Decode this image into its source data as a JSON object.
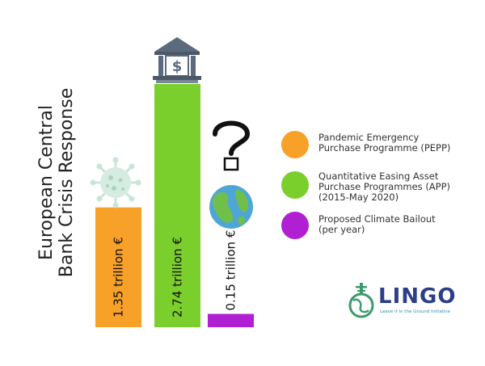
{
  "chart_data": {
    "type": "bar",
    "title_lines": [
      "European Central",
      "Bank Crisis Response"
    ],
    "categories": [
      "Pandemic Emergency Purchase Programme (PEPP)",
      "Quantitative Easing Asset Purchase Programmes (APP) (2015-May 2020)",
      "Proposed Climate Bailout (per year)"
    ],
    "values": [
      1.35,
      2.74,
      0.15
    ],
    "value_labels": [
      "1.35 trillion €",
      "2.74 trillion €",
      "0.15 trillion €"
    ],
    "unit": "trillion €",
    "colors": [
      "#f7a128",
      "#7bcf2d",
      "#b01fd1"
    ],
    "icons": [
      "virus-icon",
      "bank-icon",
      "question-mark-icon",
      "globe-icon"
    ],
    "ylim": [
      0,
      2.74
    ],
    "grid": false,
    "legend_position": "right",
    "legend": [
      {
        "lines": [
          "Pandemic Emergency",
          "Purchase Programme (PEPP)"
        ],
        "color": "#f7a128"
      },
      {
        "lines": [
          "Quantitative Easing Asset",
          "Purchase Programmes (APP)",
          "(2015-May 2020)"
        ],
        "color": "#7bcf2d"
      },
      {
        "lines": [
          "Proposed Climate Bailout",
          "(per year)"
        ],
        "color": "#b01fd1"
      }
    ]
  },
  "logo": {
    "wordmark": "LINGO",
    "tagline": "Leave it in the Ground Initiative",
    "colors": {
      "text": "#2c3e8a",
      "icon": "#3a9a6a"
    }
  }
}
